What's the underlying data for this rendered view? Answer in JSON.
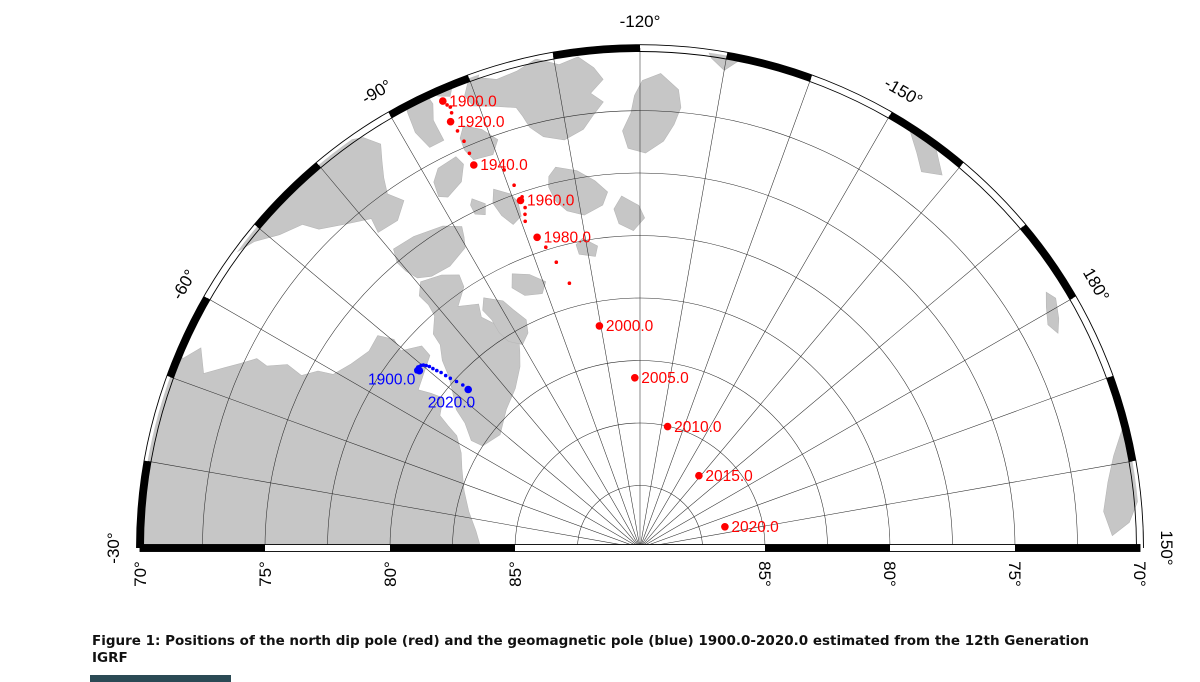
{
  "figure": {
    "caption": "Figure 1: Positions of the north dip pole (red) and the geomagnetic pole (blue) 1900.0-2020.0 estimated from the 12th Generation IGRF"
  },
  "map": {
    "land_color": "#c6c6c6",
    "land_edge_color": "#b7b7b7",
    "grid_color": "#2b2b2b",
    "frame_color": "#000000",
    "frame": {
      "lon_labels": [
        {
          "text": "-30°",
          "lon": -30
        },
        {
          "text": "-60°",
          "lon": -60
        },
        {
          "text": "-90°",
          "lon": -90
        },
        {
          "text": "-120°",
          "lon": -120
        },
        {
          "text": "-150°",
          "lon": -150
        },
        {
          "text": "180°",
          "lon": 180
        },
        {
          "text": "150°",
          "lon": 150
        }
      ],
      "lat_labels": [
        {
          "text": "70°",
          "lat": 70
        },
        {
          "text": "75°",
          "lat": 75
        },
        {
          "text": "80°",
          "lat": 80
        },
        {
          "text": "85°",
          "lat": 85
        }
      ]
    }
  },
  "chart_data": {
    "type": "scatter",
    "title": "Positions of the north dip pole and the geomagnetic pole 1900.0-2020.0 (12th Generation IGRF)",
    "projection": {
      "type": "polar azimuthal fan",
      "lat_min": 70,
      "lat_max": 90,
      "lon_left": -30,
      "lon_top": -120,
      "lon_right": 150,
      "lat_grid_step_deg": 2.5,
      "lon_grid_step_deg": 10
    },
    "series": [
      {
        "name": "north dip pole",
        "color": "#ff0000",
        "labeled_years": [
          1900,
          1920,
          1940,
          1960,
          1980,
          2000,
          2005,
          2010,
          2015,
          2020
        ],
        "points": [
          [
            1900,
            70.46,
            -96.19
          ],
          [
            1905,
            70.67,
            -96.48
          ],
          [
            1910,
            70.8,
            -96.72
          ],
          [
            1915,
            71.03,
            -96.59
          ],
          [
            1920,
            71.34,
            -96.05
          ],
          [
            1925,
            71.79,
            -96.37
          ],
          [
            1930,
            72.27,
            -96.6
          ],
          [
            1935,
            72.8,
            -96.63
          ],
          [
            1940,
            73.3,
            -96.54
          ],
          [
            1945,
            73.93,
            -100.24
          ],
          [
            1950,
            74.64,
            -100.86
          ],
          [
            1955,
            75.18,
            -101.44
          ],
          [
            1960,
            75.3,
            -101.03
          ],
          [
            1965,
            75.63,
            -101.34
          ],
          [
            1970,
            75.88,
            -100.98
          ],
          [
            1975,
            76.15,
            -100.64
          ],
          [
            1980,
            76.91,
            -101.68
          ],
          [
            1985,
            77.39,
            -102.61
          ],
          [
            1990,
            78.09,
            -103.68
          ],
          [
            1995,
            79.04,
            -105.07
          ],
          [
            2000,
            80.97,
            -109.64
          ],
          [
            2005,
            83.19,
            -118.24
          ],
          [
            2010,
            85.02,
            -132.83
          ],
          [
            2015,
            86.27,
            -159.18
          ],
          [
            2020,
            86.5,
            164.04
          ]
        ]
      },
      {
        "name": "geomagnetic pole",
        "color": "#0000ff",
        "labeled_years": [
          1900,
          2020
        ],
        "points": [
          [
            1900,
            78.68,
            -68.79
          ],
          [
            1905,
            78.68,
            -68.75
          ],
          [
            1910,
            78.66,
            -68.72
          ],
          [
            1915,
            78.64,
            -68.57
          ],
          [
            1920,
            78.63,
            -68.38
          ],
          [
            1925,
            78.62,
            -68.27
          ],
          [
            1930,
            78.6,
            -68.26
          ],
          [
            1935,
            78.57,
            -68.36
          ],
          [
            1940,
            78.55,
            -68.51
          ],
          [
            1945,
            78.55,
            -68.53
          ],
          [
            1950,
            78.55,
            -68.85
          ],
          [
            1955,
            78.54,
            -69.16
          ],
          [
            1960,
            78.58,
            -69.47
          ],
          [
            1965,
            78.6,
            -69.85
          ],
          [
            1970,
            78.66,
            -70.18
          ],
          [
            1975,
            78.76,
            -70.47
          ],
          [
            1980,
            78.88,
            -70.76
          ],
          [
            1985,
            79.04,
            -70.9
          ],
          [
            1990,
            79.21,
            -71.13
          ],
          [
            1995,
            79.39,
            -71.42
          ],
          [
            2000,
            79.61,
            -71.57
          ],
          [
            2005,
            79.82,
            -71.81
          ],
          [
            2010,
            80.09,
            -72.21
          ],
          [
            2015,
            80.37,
            -72.61
          ],
          [
            2020,
            80.65,
            -72.68
          ]
        ]
      }
    ]
  },
  "footer": {
    "partial_bar_color": "#2b4a55"
  }
}
